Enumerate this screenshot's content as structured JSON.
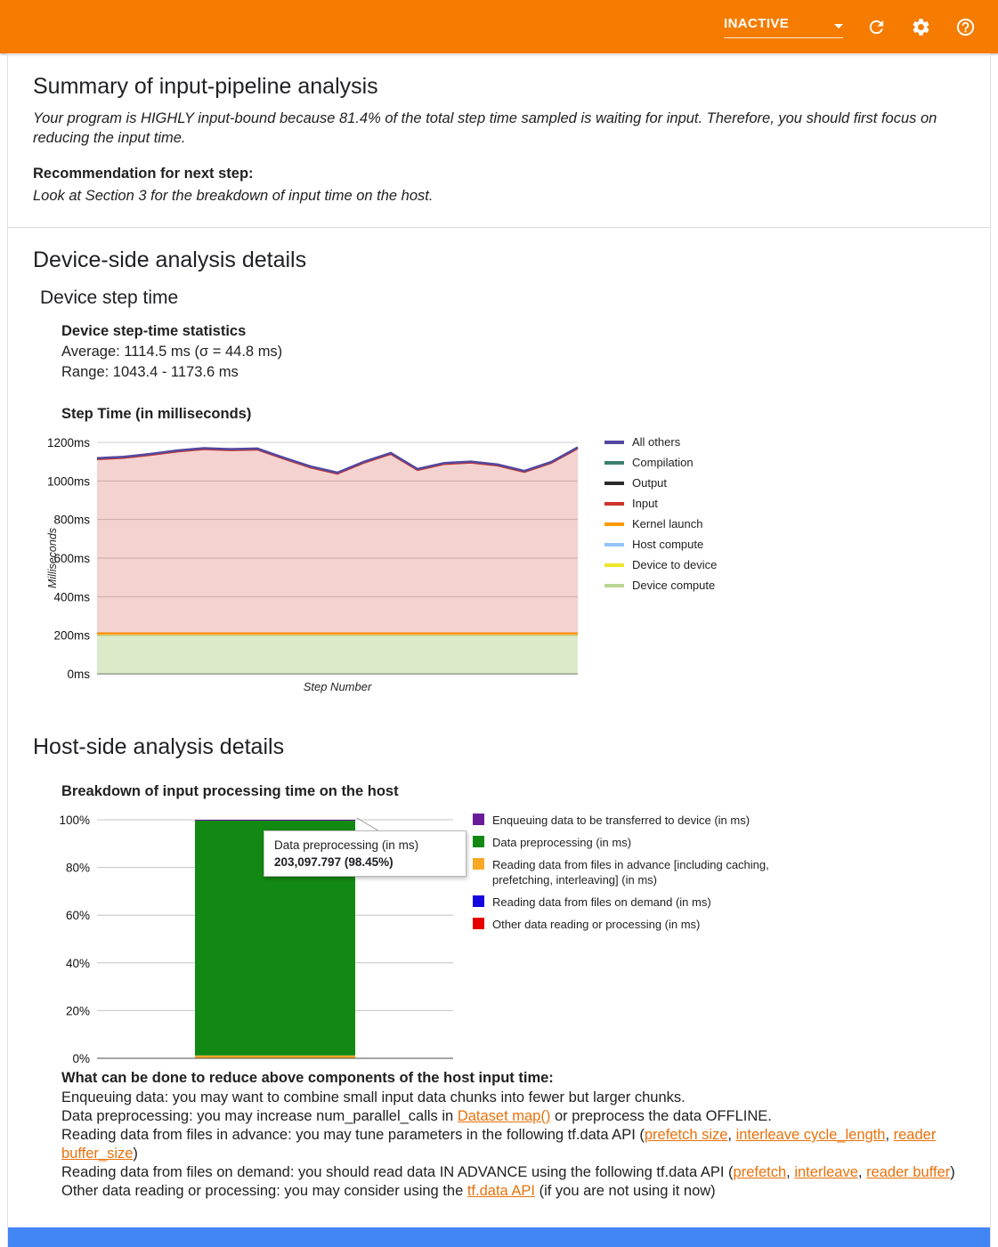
{
  "colors": {
    "header_bg": "#f57c00",
    "link": "#e8710a",
    "footer_bar": "#4285f4"
  },
  "header": {
    "status": "INACTIVE"
  },
  "summary": {
    "title": "Summary of input-pipeline analysis",
    "conclusion": "Your program is HIGHLY input-bound because 81.4% of the total step time sampled is waiting for input. Therefore, you should first focus on reducing the input time.",
    "recommendation_label": "Recommendation for next step:",
    "recommendation_text": "Look at Section 3 for the breakdown of input time on the host."
  },
  "device_section": {
    "title": "Device-side analysis details",
    "subtitle": "Device step time",
    "stats_heading": "Device step-time statistics",
    "stats_average": "Average: 1114.5 ms (σ = 44.8 ms)",
    "stats_range": "Range: 1043.4 - 1173.6 ms",
    "chart_heading": "Step Time (in milliseconds)"
  },
  "host_section": {
    "title": "Host-side analysis details",
    "chart_heading": "Breakdown of input processing time on the host",
    "tooltip_label": "Data preprocessing (in ms)",
    "tooltip_value": "203,097.797 (98.45%)",
    "advice_heading": "What can be done to reduce above components of the host input time:",
    "advice_lines": [
      {
        "segments": [
          {
            "t": "Enqueuing data: you may want to combine small input data chunks into fewer but larger chunks."
          }
        ]
      },
      {
        "segments": [
          {
            "t": "Data preprocessing: you may increase num_parallel_calls in "
          },
          {
            "t": "Dataset map()",
            "link": true
          },
          {
            "t": " or preprocess the data OFFLINE."
          }
        ]
      },
      {
        "segments": [
          {
            "t": "Reading data from files in advance: you may tune parameters in the following tf.data API ("
          },
          {
            "t": "prefetch size",
            "link": true
          },
          {
            "t": ", "
          },
          {
            "t": "interleave cycle_length",
            "link": true
          },
          {
            "t": ", "
          },
          {
            "t": "reader buffer_size",
            "link": true
          },
          {
            "t": ")"
          }
        ]
      },
      {
        "segments": [
          {
            "t": "Reading data from files on demand: you should read data IN ADVANCE using the following tf.data API ("
          },
          {
            "t": "prefetch",
            "link": true
          },
          {
            "t": ", "
          },
          {
            "t": "interleave",
            "link": true
          },
          {
            "t": ", "
          },
          {
            "t": "reader buffer",
            "link": true
          },
          {
            "t": ")"
          }
        ]
      },
      {
        "segments": [
          {
            "t": "Other data reading or processing: you may consider using the "
          },
          {
            "t": "tf.data API",
            "link": true
          },
          {
            "t": " (if you are not using it now)"
          }
        ]
      }
    ]
  },
  "chart_data": [
    {
      "type": "area",
      "title": "Step Time (in milliseconds)",
      "xlabel": "Step Number",
      "ylabel": "Milliseconds",
      "ylim": [
        0,
        1200
      ],
      "ytick_step": 200,
      "ytick_suffix": "ms",
      "grid": true,
      "legend_position": "right",
      "steps": 19,
      "series": [
        {
          "name": "Device compute",
          "color": "#b9d693",
          "fill": "rgba(185,214,147,0.5)",
          "width": 1.5,
          "values": 200
        },
        {
          "name": "Device to device",
          "color": "#efe52a",
          "fill": "none",
          "values": 0
        },
        {
          "name": "Host compute",
          "color": "#92c5f7",
          "fill": "none",
          "values": 0
        },
        {
          "name": "Kernel launch",
          "color": "#ff9900",
          "fill": "rgba(255,153,0,0.55)",
          "width": 2,
          "values": 10
        },
        {
          "name": "Input",
          "color": "#cc342b",
          "fill": "rgba(204,52,43,0.22)",
          "width": 1.5,
          "values": [
            901,
            908,
            923,
            941,
            953,
            948,
            951,
            903,
            858,
            826,
            883,
            928,
            845,
            876,
            883,
            868,
            835,
            881,
            957
          ]
        },
        {
          "name": "Output",
          "color": "#2b2b2b",
          "fill": "none",
          "values": 0
        },
        {
          "name": "Compilation",
          "color": "#3d8070",
          "fill": "none",
          "values": 0
        },
        {
          "name": "All others",
          "color": "#52489f",
          "fill": "rgba(82,72,159,0.12)",
          "width": 2.5,
          "values": 7
        }
      ]
    },
    {
      "type": "bar",
      "title": "Breakdown of input processing time on the host",
      "stacked": true,
      "unit": "%",
      "ylim": [
        0,
        100
      ],
      "ytick_step": 20,
      "bar": {
        "segments_bottom_to_top": [
          {
            "name": "Reading data from files in advance [including caching, prefetching, interleaving] (in ms)",
            "color": "#f9a825",
            "pct": 1.2
          },
          {
            "name": "Data preprocessing (in ms)",
            "color": "#128912",
            "pct": 98.45,
            "value_ms": "203,097.797"
          },
          {
            "name": "Enqueuing data to be transferred to device (in ms)",
            "color": "#6a1b9a",
            "pct": 0.35
          }
        ]
      },
      "legend": [
        {
          "label": "Enqueuing data to be transferred to device (in ms)",
          "color": "#6a1b9a"
        },
        {
          "label": "Data preprocessing (in ms)",
          "color": "#128912"
        },
        {
          "label": "Reading data from files in advance [including caching, prefetching, interleaving] (in ms)",
          "color": "#f9a825"
        },
        {
          "label": "Reading data from files on demand (in ms)",
          "color": "#1607e0"
        },
        {
          "label": "Other data reading or processing (in ms)",
          "color": "#e60000"
        }
      ]
    }
  ]
}
